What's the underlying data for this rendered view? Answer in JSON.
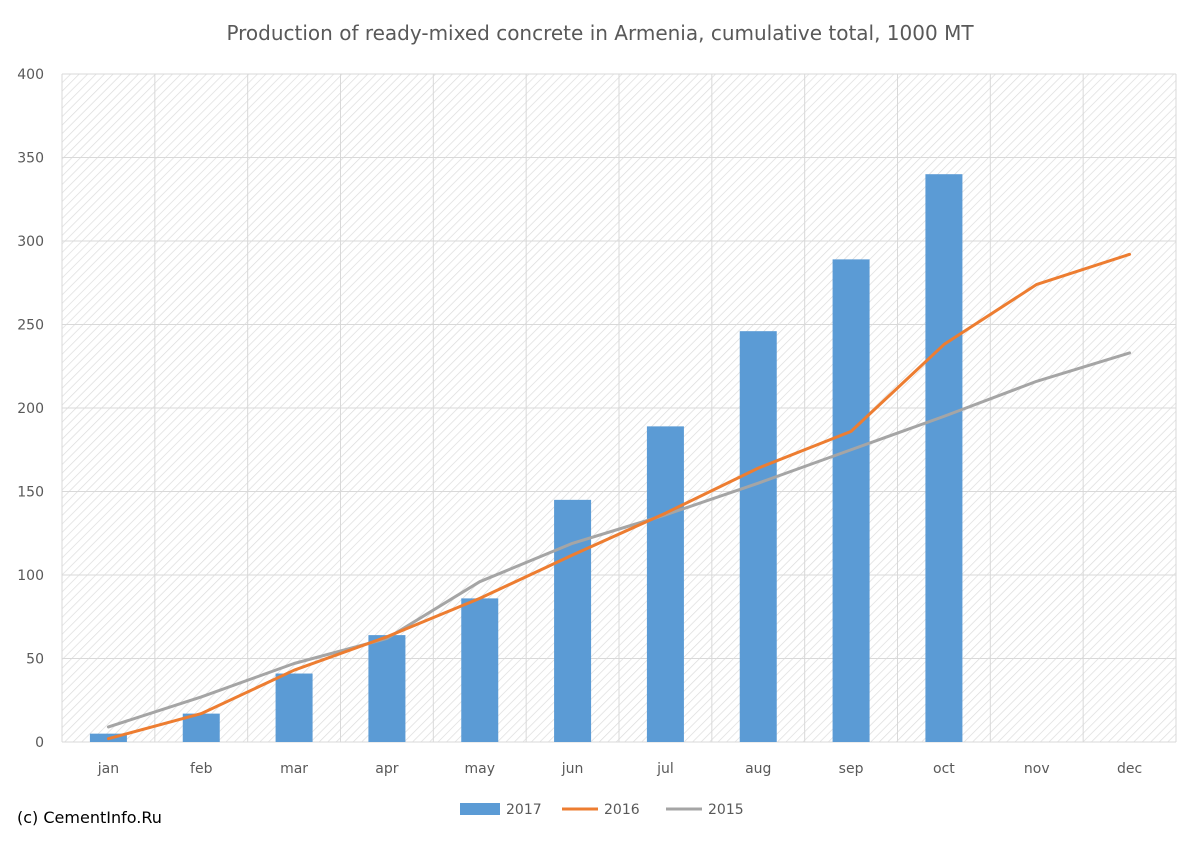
{
  "chart_data": {
    "type": "bar",
    "title": "Production of ready-mixed concrete in Armenia, cumulative total, 1000 MT",
    "categories": [
      "jan",
      "feb",
      "mar",
      "apr",
      "may",
      "jun",
      "jul",
      "aug",
      "sep",
      "oct",
      "nov",
      "dec"
    ],
    "ylim": [
      0,
      400
    ],
    "yticks": [
      0,
      50,
      100,
      150,
      200,
      250,
      300,
      350,
      400
    ],
    "grid": true,
    "legend_position": "bottom",
    "series": [
      {
        "name": "2017",
        "kind": "bar",
        "color": "#5B9BD5",
        "values": [
          5,
          17,
          41,
          64,
          86,
          145,
          189,
          246,
          289,
          340,
          null,
          null
        ]
      },
      {
        "name": "2016",
        "kind": "line",
        "color": "#ED7D31",
        "values": [
          2,
          17,
          43,
          63,
          86,
          112,
          137,
          164,
          186,
          238,
          274,
          292
        ]
      },
      {
        "name": "2015",
        "kind": "line",
        "color": "#A5A5A5",
        "values": [
          9,
          27,
          47,
          62,
          96,
          119,
          136,
          155,
          175,
          195,
          216,
          233
        ]
      }
    ]
  },
  "footer": {
    "copyright": "(c) CementInfo.Ru"
  }
}
